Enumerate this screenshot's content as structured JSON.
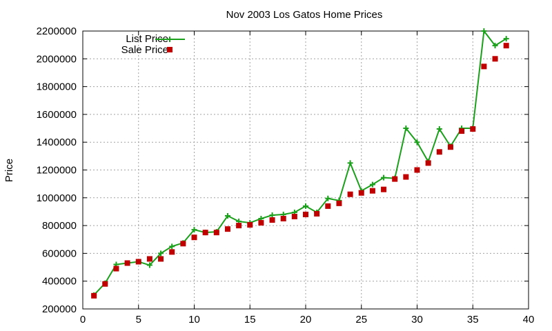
{
  "chart_data": {
    "type": "line",
    "title": "Nov 2003 Los Gatos Home Prices",
    "xlabel": "",
    "ylabel": "Price",
    "xlim": [
      0,
      40
    ],
    "ylim": [
      200000,
      2200000
    ],
    "xticks": [
      0,
      5,
      10,
      15,
      20,
      25,
      30,
      35,
      40
    ],
    "yticks": [
      200000,
      400000,
      600000,
      800000,
      1000000,
      1200000,
      1400000,
      1600000,
      1800000,
      2000000,
      2200000
    ],
    "xtick_labels": [
      "0",
      "5",
      "10",
      "15",
      "20",
      "25",
      "30",
      "35",
      "40"
    ],
    "ytick_labels": [
      "200000",
      "400000",
      "600000",
      "800000",
      "1000000",
      "1200000",
      "1400000",
      "1600000",
      "1800000",
      "2000000",
      "2200000"
    ],
    "grid": true,
    "legend_position": "top-left",
    "x": [
      1,
      2,
      3,
      4,
      5,
      6,
      7,
      8,
      9,
      10,
      11,
      12,
      13,
      14,
      15,
      16,
      17,
      18,
      19,
      20,
      21,
      22,
      23,
      24,
      25,
      26,
      27,
      28,
      29,
      30,
      31,
      32,
      33,
      34,
      35,
      36,
      37,
      38
    ],
    "series": [
      {
        "name": "List Price",
        "style": "linespoints",
        "color": "#1aa01a",
        "values": [
          300000,
          385000,
          520000,
          530000,
          540000,
          515000,
          600000,
          650000,
          675000,
          770000,
          750000,
          755000,
          870000,
          830000,
          820000,
          850000,
          875000,
          880000,
          895000,
          940000,
          895000,
          995000,
          980000,
          1250000,
          1050000,
          1095000,
          1145000,
          1140000,
          1500000,
          1400000,
          1260000,
          1495000,
          1370000,
          1500000,
          1500000,
          2200000,
          2095000,
          2145000
        ]
      },
      {
        "name": "Sale Price",
        "style": "points",
        "color": "#c00000",
        "values": [
          295000,
          380000,
          490000,
          530000,
          540000,
          560000,
          560000,
          610000,
          670000,
          715000,
          750000,
          750000,
          775000,
          800000,
          805000,
          820000,
          840000,
          850000,
          865000,
          880000,
          885000,
          940000,
          960000,
          1025000,
          1035000,
          1050000,
          1060000,
          1135000,
          1150000,
          1200000,
          1250000,
          1330000,
          1365000,
          1480000,
          1495000,
          1945000,
          2000000,
          2095000
        ]
      }
    ]
  }
}
